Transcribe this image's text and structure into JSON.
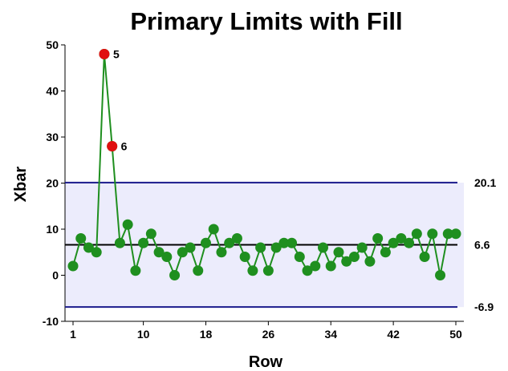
{
  "chart_data": {
    "type": "line",
    "title": "Primary Limits with Fill",
    "xlabel": "Row",
    "ylabel": "Xbar",
    "xlim": [
      1,
      50
    ],
    "ylim": [
      -10,
      50
    ],
    "x_ticks": [
      1,
      10,
      18,
      26,
      34,
      42,
      50
    ],
    "y_ticks": [
      50,
      40,
      30,
      20,
      10,
      0,
      -10
    ],
    "limits": {
      "ucl": {
        "value": 20.1,
        "label": "20.1",
        "color": "#1a1a8c"
      },
      "center": {
        "value": 6.6,
        "label": "6.6",
        "color": "#000000"
      },
      "lcl": {
        "value": -6.9,
        "label": "-6.9",
        "color": "#1a1a8c"
      }
    },
    "fill_color": "#ececfc",
    "series": [
      {
        "color": "#1f8f1f",
        "x": [
          1,
          2,
          3,
          4,
          5,
          6,
          7,
          8,
          9,
          10,
          11,
          12,
          13,
          14,
          15,
          16,
          17,
          18,
          19,
          20,
          21,
          22,
          23,
          24,
          25,
          26,
          27,
          28,
          29,
          30,
          31,
          32,
          33,
          34,
          35,
          36,
          37,
          38,
          39,
          40,
          41,
          42,
          43,
          44,
          45,
          46,
          47,
          48,
          49,
          50
        ],
        "values": [
          2,
          8,
          6,
          5,
          48,
          28,
          7,
          11,
          1,
          7,
          9,
          5,
          4,
          0,
          5,
          6,
          1,
          7,
          10,
          5,
          7,
          8,
          4,
          1,
          6,
          1,
          6,
          7,
          7,
          4,
          1,
          2,
          6,
          2,
          5,
          3,
          4,
          6,
          3,
          8,
          5,
          7,
          8,
          7,
          9,
          4,
          9,
          0,
          9,
          9
        ]
      }
    ],
    "out_of_control": [
      {
        "x": 5,
        "y": 48,
        "label": "5",
        "color": "#e01010"
      },
      {
        "x": 6,
        "y": 28,
        "label": "6",
        "color": "#e01010"
      }
    ]
  }
}
